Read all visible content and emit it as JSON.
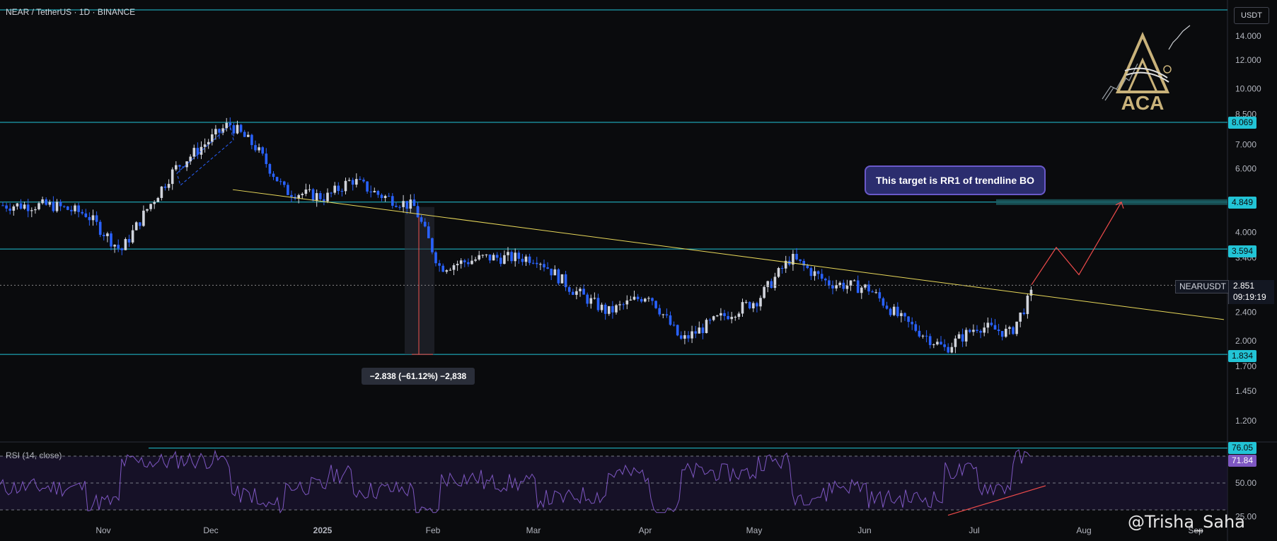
{
  "header": {
    "symbol_title": "NEAR / TetherUS · 1D · BINANCE",
    "currency_label": "USDT"
  },
  "price_axis": {
    "ticks": [
      "14.000",
      "12.000",
      "10.000",
      "8.500",
      "7.000",
      "6.000",
      "4.000",
      "3.400",
      "2.400",
      "2.000",
      "1.700",
      "1.450",
      "1.200"
    ]
  },
  "levels": [
    {
      "value": 8.069,
      "label": "8.069"
    },
    {
      "value": 4.849,
      "label": "4.849"
    },
    {
      "value": 3.594,
      "label": "3.594"
    },
    {
      "value": 1.834,
      "label": "1.834"
    }
  ],
  "current": {
    "symbol": "NEARUSDT",
    "price": "2.851",
    "countdown": "09:19:19"
  },
  "annotations": {
    "target_note": "This target is RR1 of trendline BO",
    "measure": "−2.838 (−61.12%) −2,838"
  },
  "rsi": {
    "title": "RSI (14, close)",
    "ticks": [
      "50.00",
      "25.00"
    ],
    "level_upper": "76.05",
    "current": "71.84"
  },
  "time_axis": {
    "labels": [
      "Nov",
      "Dec",
      "2025",
      "Feb",
      "Mar",
      "Apr",
      "May",
      "Jun",
      "Jul",
      "Aug",
      "Sep"
    ]
  },
  "branding": {
    "logo_text": "ACA",
    "watermark": "@Trisha_Saha"
  },
  "colors": {
    "up": "#d1d4dc",
    "down": "#2962ff",
    "level_line": "#22c4d6",
    "trendline": "#e8d85a",
    "projection": "#ef4b4b",
    "rsi_line": "#7e57c2"
  },
  "chart_data": {
    "type": "candlestick",
    "scale": "log",
    "ylim": [
      1.1,
      15.5
    ],
    "close_path": [
      [
        "Oct 15",
        4.75
      ],
      [
        "Oct 25",
        4.5
      ],
      [
        "Nov 5",
        3.55
      ],
      [
        "Nov 12",
        4.6
      ],
      [
        "Nov 20",
        6.0
      ],
      [
        "Dec 5",
        8.0
      ],
      [
        "Dec 12",
        6.9
      ],
      [
        "Dec 20",
        5.2
      ],
      [
        "2025",
        5.0
      ],
      [
        "Jan 8",
        5.6
      ],
      [
        "Jan 15",
        5.1
      ],
      [
        "Jan 25",
        4.7
      ],
      [
        "Feb 2",
        3.2
      ],
      [
        "Feb 15",
        3.4
      ],
      [
        "Mar 1",
        3.4
      ],
      [
        "Mar 10",
        2.8
      ],
      [
        "Mar 20",
        2.4
      ],
      [
        "Apr 1",
        2.7
      ],
      [
        "Apr 10",
        2.0
      ],
      [
        "Apr 20",
        2.3
      ],
      [
        "May 1",
        2.6
      ],
      [
        "May 10",
        3.4
      ],
      [
        "May 20",
        2.9
      ],
      [
        "Jun 1",
        2.8
      ],
      [
        "Jun 10",
        2.3
      ],
      [
        "Jun 22",
        1.9
      ],
      [
        "Jul 1",
        2.2
      ],
      [
        "Jul 10",
        2.1
      ],
      [
        "Jul 17",
        2.85
      ]
    ]
  }
}
